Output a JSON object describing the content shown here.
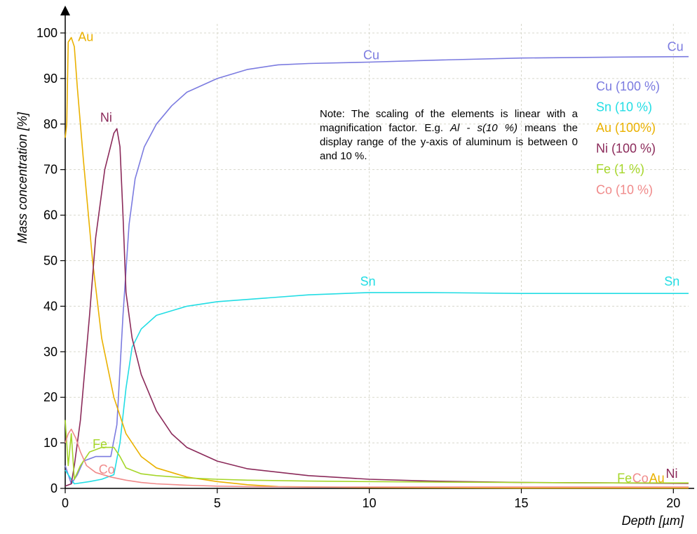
{
  "chart_data": {
    "type": "line",
    "xlabel": "Depth [µm]",
    "ylabel": "Mass concentration [%]",
    "xlim": [
      0,
      20.5
    ],
    "ylim": [
      0,
      102
    ],
    "x_ticks": [
      0,
      5,
      10,
      15,
      20
    ],
    "y_ticks": [
      0,
      10,
      20,
      30,
      40,
      50,
      60,
      70,
      80,
      90,
      100
    ],
    "grid": true,
    "legend_position": "top-right",
    "note": {
      "line1": "Note: The scaling of the elements is linear",
      "line2": "with a magnification factor. E.g.",
      "italic": "Al - s(10 %)",
      "line3": "means the display range of the y-axis of",
      "line4": "aluminum is between 0 and 10 %."
    },
    "series": [
      {
        "name": "Cu",
        "legend": "Cu (100 %)",
        "color": "#7b7be0",
        "x": [
          0,
          0.2,
          0.4,
          0.6,
          1.0,
          1.5,
          1.7,
          1.9,
          2.1,
          2.3,
          2.6,
          3.0,
          3.5,
          4.0,
          5.0,
          6.0,
          7.0,
          8.0,
          10.0,
          12.0,
          15.0,
          18.0,
          20.5
        ],
        "y": [
          5,
          1,
          3,
          6,
          7,
          7,
          14,
          38,
          58,
          68,
          75,
          80,
          84,
          87,
          90,
          92,
          93,
          93.3,
          93.6,
          94,
          94.5,
          94.7,
          94.8
        ]
      },
      {
        "name": "Sn",
        "legend": "Sn (10 %)",
        "color": "#22dde4",
        "x": [
          0,
          0.3,
          0.8,
          1.2,
          1.6,
          1.8,
          2.0,
          2.2,
          2.5,
          3.0,
          4.0,
          5.0,
          6.0,
          8.0,
          10.0,
          12.0,
          15.0,
          18.0,
          20.5
        ],
        "y": [
          4,
          1,
          1.5,
          2,
          3,
          10,
          22,
          31,
          35,
          38,
          40,
          41,
          41.5,
          42.5,
          43,
          43,
          42.8,
          42.8,
          42.8
        ]
      },
      {
        "name": "Au",
        "legend": "Au (100%)",
        "color": "#eab100",
        "x": [
          0,
          0.05,
          0.1,
          0.2,
          0.3,
          0.4,
          0.6,
          0.9,
          1.2,
          1.6,
          2.0,
          2.5,
          3.0,
          4.0,
          5.0,
          6.0,
          7.0,
          10.0,
          15.0,
          20.5
        ],
        "y": [
          77,
          80,
          98,
          99,
          97,
          88,
          72,
          50,
          33,
          20,
          12,
          7,
          4.5,
          2.5,
          1.5,
          0.8,
          0.4,
          0.2,
          0.1,
          0.1
        ]
      },
      {
        "name": "Ni",
        "legend": "Ni (100 %)",
        "color": "#8b2a5a",
        "x": [
          0,
          0.2,
          0.3,
          0.5,
          0.8,
          1.0,
          1.3,
          1.6,
          1.7,
          1.8,
          1.9,
          2.0,
          2.2,
          2.5,
          3.0,
          3.5,
          4.0,
          5.0,
          6.0,
          8.0,
          10.0,
          12.0,
          15.0,
          18.0,
          20.5
        ],
        "y": [
          0.5,
          1,
          5,
          15,
          38,
          55,
          70,
          78,
          79,
          75,
          60,
          43,
          33,
          25,
          17,
          12,
          9,
          6,
          4.3,
          2.8,
          2.0,
          1.6,
          1.3,
          1.2,
          1.1
        ]
      },
      {
        "name": "Fe",
        "legend": "Fe (1 %)",
        "color": "#a6d62a",
        "x": [
          0,
          0.1,
          0.2,
          0.3,
          0.5,
          0.8,
          1.2,
          1.6,
          1.8,
          2.0,
          2.5,
          3.0,
          4.0,
          5.0,
          6.0,
          8.0,
          10.0,
          12.0,
          15.0,
          18.0,
          20.5
        ],
        "y": [
          15,
          5,
          12,
          2,
          5,
          8,
          9,
          9,
          7,
          4.5,
          3.2,
          2.8,
          2.3,
          2.0,
          1.8,
          1.6,
          1.5,
          1.4,
          1.3,
          1.2,
          1.2
        ]
      },
      {
        "name": "Co",
        "legend": "Co (10 %)",
        "color": "#f08a8a",
        "x": [
          0,
          0.1,
          0.2,
          0.35,
          0.5,
          0.7,
          1.0,
          1.5,
          2.0,
          2.5,
          3.0,
          4.0,
          5.0,
          6.0,
          8.0,
          10.0,
          15.0,
          20.5
        ],
        "y": [
          10,
          12,
          13,
          11,
          8,
          5,
          3.5,
          2.5,
          1.8,
          1.3,
          1.0,
          0.7,
          0.5,
          0.4,
          0.3,
          0.3,
          0.3,
          0.3
        ]
      }
    ],
    "series_labels": [
      {
        "text": "Cu",
        "x": 9.8,
        "y": 94.2,
        "series": 0
      },
      {
        "text": "Cu",
        "x": 19.8,
        "y": 96.1,
        "series": 0
      },
      {
        "text": "Sn",
        "x": 9.7,
        "y": 44.5,
        "series": 1
      },
      {
        "text": "Sn",
        "x": 19.7,
        "y": 44.5,
        "series": 1
      },
      {
        "text": "Au",
        "x": 0.42,
        "y": 98.2,
        "series": 2
      },
      {
        "text": "Ni",
        "x": 1.15,
        "y": 80.5,
        "series": 3
      },
      {
        "text": "Fe",
        "x": 0.9,
        "y": 8.8,
        "series": 4
      },
      {
        "text": "Co",
        "x": 1.1,
        "y": 3.2,
        "series": 5
      },
      {
        "text": "Fe",
        "x": 18.15,
        "y": 1.3,
        "series": 4
      },
      {
        "text": "Co",
        "x": 18.65,
        "y": 1.3,
        "series": 5
      },
      {
        "text": "Au",
        "x": 19.2,
        "y": 1.3,
        "series": 2
      },
      {
        "text": "Ni",
        "x": 19.75,
        "y": 2.3,
        "series": 3
      }
    ]
  }
}
